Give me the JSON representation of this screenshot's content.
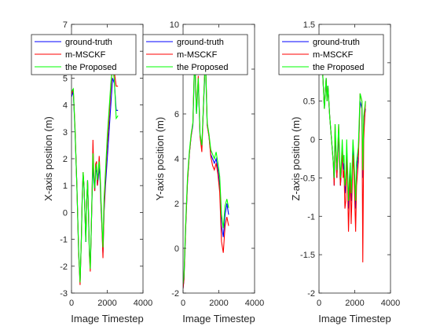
{
  "chart_data": [
    {
      "type": "line",
      "xlabel": "Image Timestep",
      "ylabel": "X-axis position (m)",
      "xlim": [
        0,
        4000
      ],
      "ylim": [
        -3,
        7
      ],
      "xticks": [
        "0",
        "2000",
        "4000"
      ],
      "yticks": [
        "-3",
        "-2",
        "-1",
        "0",
        "1",
        "2",
        "3",
        "4",
        "5",
        "6",
        "7"
      ],
      "series": [
        {
          "name": "ground-truth",
          "color": "#0000ff",
          "x": [
            0,
            100,
            200,
            300,
            400,
            480,
            550,
            600,
            650,
            700,
            760,
            800,
            850,
            900,
            950,
            1000,
            1050,
            1100,
            1150,
            1200,
            1250,
            1300,
            1350,
            1400,
            1450,
            1500,
            1550,
            1600,
            1650,
            1700,
            1760,
            1820,
            1900,
            2000,
            2100,
            2200,
            2300,
            2400,
            2500,
            2600
          ],
          "y": [
            4.3,
            4.5,
            3.0,
            1.0,
            -1.5,
            -2.6,
            -1.0,
            0.5,
            1.4,
            1.0,
            -0.2,
            -1.1,
            0.4,
            1.2,
            0.0,
            -1.5,
            -2.0,
            -0.8,
            0.6,
            1.8,
            1.2,
            0.8,
            1.5,
            1.6,
            1.0,
            1.3,
            1.7,
            1.2,
            0.2,
            -0.5,
            -1.5,
            0.0,
            1.0,
            2.0,
            3.0,
            4.0,
            5.0,
            4.8,
            3.8,
            3.8
          ]
        },
        {
          "name": "m-MSCKF",
          "color": "#ff0000",
          "x": [
            0,
            100,
            200,
            300,
            400,
            480,
            550,
            600,
            650,
            700,
            760,
            800,
            850,
            900,
            950,
            1000,
            1050,
            1100,
            1150,
            1200,
            1250,
            1300,
            1350,
            1400,
            1450,
            1500,
            1550,
            1600,
            1650,
            1700,
            1760,
            1820,
            1900,
            2000,
            2100,
            2200,
            2300,
            2400,
            2500,
            2600
          ],
          "y": [
            4.4,
            4.6,
            3.1,
            1.0,
            -1.5,
            -2.7,
            -1.0,
            0.6,
            1.5,
            1.0,
            -0.2,
            -1.0,
            0.4,
            1.2,
            0.0,
            -1.6,
            -2.2,
            -0.8,
            0.7,
            2.7,
            1.4,
            0.8,
            1.8,
            1.9,
            1.0,
            1.5,
            2.1,
            1.3,
            0.3,
            -0.5,
            -1.7,
            0.1,
            1.3,
            2.5,
            3.5,
            4.6,
            5.6,
            5.2,
            4.7,
            4.7
          ]
        },
        {
          "name": "the Proposed",
          "color": "#00ff00",
          "x": [
            0,
            100,
            200,
            300,
            400,
            480,
            550,
            600,
            650,
            700,
            760,
            800,
            850,
            900,
            950,
            1000,
            1050,
            1100,
            1150,
            1200,
            1250,
            1300,
            1350,
            1400,
            1450,
            1500,
            1550,
            1600,
            1650,
            1700,
            1760,
            1820,
            1900,
            2000,
            2100,
            2200,
            2300,
            2400,
            2500,
            2600
          ],
          "y": [
            4.5,
            4.6,
            3.0,
            1.0,
            -1.4,
            -2.6,
            -1.0,
            0.6,
            1.5,
            1.0,
            -0.2,
            -1.1,
            0.4,
            1.2,
            0.0,
            -1.5,
            -2.1,
            -0.8,
            0.7,
            2.2,
            1.3,
            0.9,
            1.6,
            1.8,
            1.2,
            1.5,
            1.9,
            1.5,
            0.5,
            -0.3,
            -1.3,
            0.5,
            1.5,
            2.8,
            3.8,
            4.8,
            5.5,
            4.9,
            3.5,
            3.6
          ]
        }
      ]
    },
    {
      "type": "line",
      "xlabel": "Image Timestep",
      "ylabel": "Y-axis position (m)",
      "xlim": [
        0,
        4000
      ],
      "ylim": [
        -2,
        10
      ],
      "xticks": [
        "0",
        "2000",
        "4000"
      ],
      "yticks": [
        "-2",
        "0",
        "2",
        "4",
        "6",
        "8",
        "10"
      ],
      "series": [
        {
          "name": "ground-truth",
          "color": "#0000ff",
          "x": [
            0,
            50,
            150,
            250,
            350,
            450,
            550,
            650,
            750,
            850,
            950,
            1050,
            1150,
            1250,
            1350,
            1450,
            1550,
            1650,
            1750,
            1850,
            1950,
            2050,
            2150,
            2250,
            2350,
            2450,
            2550
          ],
          "y": [
            -1.8,
            -1.4,
            1.0,
            3.0,
            4.2,
            5.0,
            5.5,
            8.5,
            6.0,
            7.5,
            5.0,
            4.5,
            6.5,
            8.5,
            5.5,
            5.0,
            4.2,
            4.0,
            3.8,
            4.0,
            3.5,
            2.8,
            1.0,
            0.5,
            1.5,
            2.0,
            1.5
          ]
        },
        {
          "name": "m-MSCKF",
          "color": "#ff0000",
          "x": [
            0,
            50,
            150,
            250,
            350,
            450,
            550,
            650,
            750,
            850,
            950,
            1050,
            1150,
            1250,
            1350,
            1450,
            1550,
            1650,
            1750,
            1850,
            1950,
            2050,
            2150,
            2250,
            2350,
            2450,
            2550
          ],
          "y": [
            -1.8,
            -1.4,
            1.0,
            3.0,
            4.2,
            5.0,
            5.6,
            8.7,
            6.1,
            7.7,
            5.0,
            4.3,
            6.6,
            8.7,
            5.5,
            5.0,
            4.1,
            3.7,
            3.5,
            3.8,
            3.3,
            2.5,
            0.3,
            -0.2,
            1.0,
            1.4,
            1.0
          ]
        },
        {
          "name": "the Proposed",
          "color": "#00ff00",
          "x": [
            0,
            50,
            150,
            250,
            350,
            450,
            550,
            650,
            750,
            850,
            950,
            1050,
            1150,
            1250,
            1350,
            1450,
            1550,
            1650,
            1750,
            1850,
            1950,
            2050,
            2150,
            2250,
            2350,
            2450,
            2550
          ],
          "y": [
            -1.6,
            -1.2,
            1.2,
            3.2,
            4.3,
            5.1,
            5.6,
            8.6,
            6.0,
            7.6,
            5.1,
            4.6,
            6.6,
            8.6,
            5.6,
            5.1,
            4.4,
            4.2,
            4.0,
            4.3,
            3.8,
            3.2,
            1.5,
            0.9,
            1.9,
            2.2,
            1.8
          ]
        }
      ]
    },
    {
      "type": "line",
      "xlabel": "Image Timestep",
      "ylabel": "Z-axis position (m)",
      "xlim": [
        0,
        4000
      ],
      "ylim": [
        -2,
        1.5
      ],
      "xticks": [
        "0",
        "2000",
        "4000"
      ],
      "yticks": [
        "-2",
        "-1.5",
        "-1",
        "-0.5",
        "0",
        "0.5",
        "1",
        "1.5"
      ],
      "series": [
        {
          "name": "ground-truth",
          "color": "#0000ff",
          "x": [
            0,
            100,
            200,
            300,
            400,
            450,
            500,
            600,
            700,
            800,
            850,
            900,
            950,
            1000,
            1050,
            1100,
            1150,
            1200,
            1250,
            1300,
            1350,
            1400,
            1450,
            1500,
            1550,
            1600,
            1650,
            1700,
            1750,
            1800,
            1850,
            1900,
            1950,
            2000,
            2050,
            2100,
            2200,
            2300,
            2400,
            2450,
            2500,
            2600
          ],
          "y": [
            0.9,
            1.0,
            0.9,
            0.4,
            0.8,
            0.5,
            0.7,
            0.3,
            0.0,
            -0.3,
            -0.6,
            0.1,
            -0.2,
            -0.5,
            -0.2,
            0.1,
            -0.3,
            -0.6,
            -0.4,
            -0.1,
            -0.4,
            -0.3,
            -0.7,
            -0.6,
            -0.1,
            -0.5,
            -0.9,
            -0.6,
            -0.4,
            -0.8,
            -0.5,
            -0.1,
            -0.3,
            -0.6,
            -0.9,
            -0.4,
            -0.2,
            0.5,
            0.4,
            -0.5,
            0.2,
            0.4
          ]
        },
        {
          "name": "m-MSCKF",
          "color": "#ff0000",
          "x": [
            0,
            100,
            200,
            300,
            400,
            450,
            500,
            600,
            700,
            800,
            850,
            900,
            950,
            1000,
            1050,
            1100,
            1150,
            1200,
            1250,
            1300,
            1350,
            1400,
            1450,
            1500,
            1550,
            1600,
            1650,
            1700,
            1750,
            1800,
            1850,
            1900,
            1950,
            2000,
            2050,
            2100,
            2200,
            2300,
            2400,
            2450,
            2500,
            2600
          ],
          "y": [
            0.9,
            1.0,
            0.9,
            0.4,
            0.8,
            0.5,
            0.7,
            0.3,
            0.0,
            -0.3,
            -0.6,
            0.2,
            -0.2,
            -0.5,
            -0.2,
            0.2,
            -0.3,
            -0.6,
            -0.4,
            -0.1,
            -0.5,
            -0.4,
            -0.9,
            -0.8,
            -0.2,
            -0.6,
            -1.2,
            -0.8,
            -0.5,
            -1.1,
            -0.7,
            -0.2,
            -0.4,
            -0.8,
            -1.2,
            -0.6,
            -0.3,
            0.6,
            0.5,
            -1.6,
            0.0,
            0.5
          ]
        },
        {
          "name": "the Proposed",
          "color": "#00ff00",
          "x": [
            0,
            100,
            200,
            300,
            400,
            450,
            500,
            600,
            700,
            800,
            850,
            900,
            950,
            1000,
            1050,
            1100,
            1150,
            1200,
            1250,
            1300,
            1350,
            1400,
            1450,
            1500,
            1550,
            1600,
            1650,
            1700,
            1750,
            1800,
            1850,
            1900,
            1950,
            2000,
            2050,
            2100,
            2200,
            2300,
            2400,
            2450,
            2500,
            2600
          ],
          "y": [
            0.9,
            1.0,
            0.9,
            0.4,
            0.8,
            0.5,
            0.7,
            0.3,
            0.0,
            -0.3,
            -0.5,
            0.2,
            -0.1,
            -0.4,
            -0.1,
            0.2,
            -0.2,
            -0.5,
            -0.3,
            0.0,
            -0.3,
            -0.2,
            -0.6,
            -0.5,
            0.0,
            -0.4,
            -0.8,
            -0.5,
            -0.3,
            -0.7,
            -0.4,
            0.0,
            -0.2,
            -0.5,
            -0.8,
            -0.3,
            -0.1,
            0.6,
            0.5,
            -0.4,
            0.3,
            0.5
          ]
        }
      ]
    }
  ],
  "legend": {
    "entries": [
      "ground-truth",
      "m-MSCKF",
      "the Proposed"
    ]
  }
}
